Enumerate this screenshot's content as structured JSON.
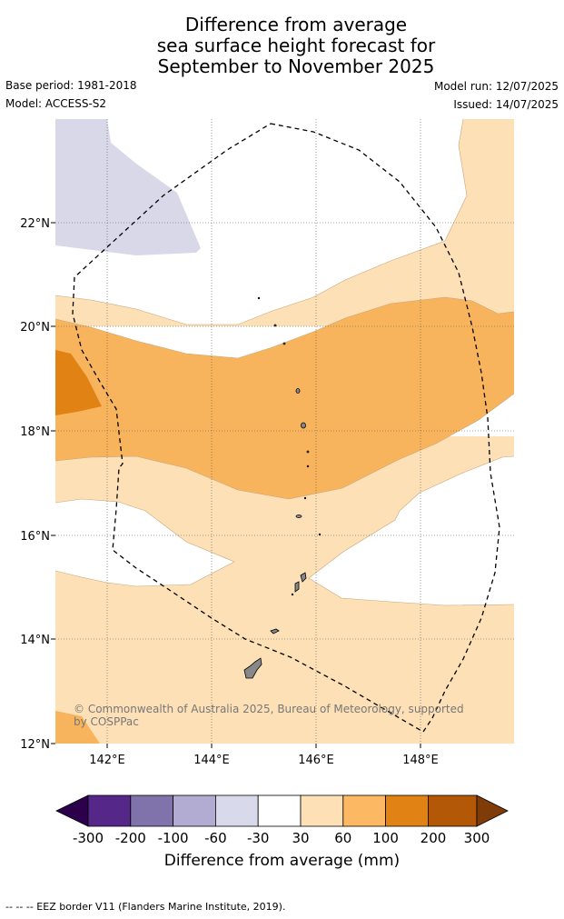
{
  "title": {
    "line1": "Difference from average",
    "line2": "sea surface height forecast for",
    "line3": "September to November 2025"
  },
  "meta": {
    "base_period": "Base period: 1981-2018",
    "model": "Model: ACCESS-S2",
    "model_run": "Model run: 12/07/2025",
    "issued": "Issued: 14/07/2025"
  },
  "map": {
    "lon_labels": [
      "142°E",
      "144°E",
      "146°E",
      "148°E"
    ],
    "lat_labels": [
      "22°N",
      "20°N",
      "18°N",
      "16°N",
      "14°N",
      "12°N"
    ],
    "copyright_line1": "© Commonwealth of Australia 2025, Bureau of Meteorology, supported",
    "copyright_line2": "by COSPPac",
    "colors": {
      "neg30_neg60": "#d8d8e8",
      "pos30_60": "#fde0b6",
      "pos60_100": "#f8b45c",
      "pos100_200": "#e08214",
      "land": "#888888"
    }
  },
  "colorbar": {
    "ticks": [
      "-300",
      "-200",
      "-100",
      "-60",
      "-30",
      "30",
      "60",
      "100",
      "200",
      "300"
    ],
    "colors": [
      "#2d004b",
      "#542788",
      "#8073ac",
      "#b2abd2",
      "#d8daeb",
      "#ffffff",
      "#fee0b6",
      "#fdb863",
      "#e08214",
      "#b35806",
      "#7f3b08"
    ],
    "label": "Difference from average (mm)"
  },
  "footnote": "--  --  -- EEZ border V11 (Flanders Marine Institute, 2019)."
}
